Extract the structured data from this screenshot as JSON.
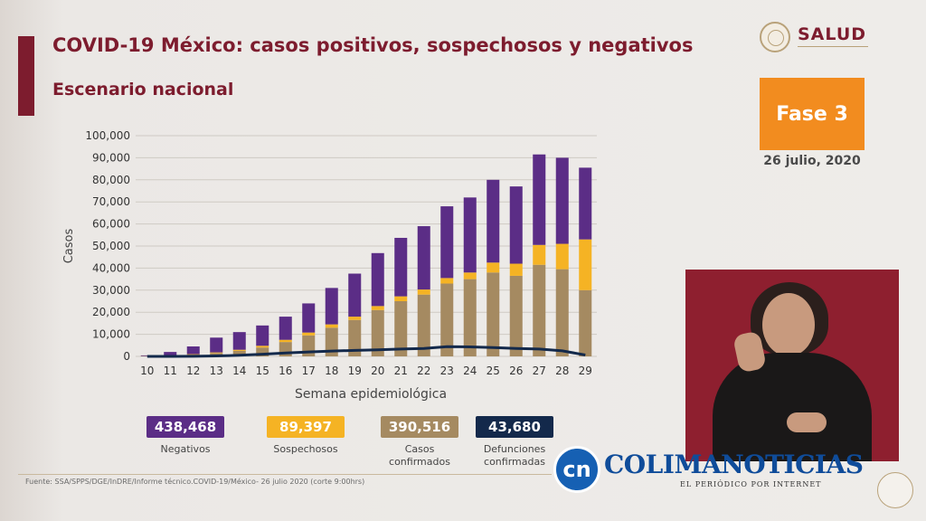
{
  "header": {
    "title": "COVID-19 México: casos positivos, sospechosos y negativos",
    "subtitle": "Escenario nacional",
    "logo_text": "SALUD",
    "phase": "Fase 3",
    "date": "26 julio, 2020"
  },
  "summary": [
    {
      "value": "438,468",
      "label": "Negativos",
      "color": "#5b2d86"
    },
    {
      "value": "89,397",
      "label": "Sospechosos",
      "color": "#f5b324"
    },
    {
      "value": "390,516",
      "label": "Casos confirmados",
      "color": "#a58a61"
    },
    {
      "value": "43,680",
      "label": "Defunciones confirmadas",
      "color": "#13294b"
    }
  ],
  "footer": {
    "source": "Fuente: SSA/SPPS/DGE/InDRE/Informe técnico.COVID-19/México- 26 julio 2020 (corte 9:00hrs)",
    "watermark": "COLIMANOTICIAS",
    "watermark_sub": "EL PERIÓDICO POR INTERNET",
    "watermark_badge": "cn"
  },
  "chart_data": {
    "type": "bar",
    "stacked": true,
    "xlabel": "Semana epidemiológica",
    "ylabel": "Casos",
    "ylim": [
      0,
      100000
    ],
    "yticks": [
      "0",
      "10,000",
      "20,000",
      "30,000",
      "40,000",
      "50,000",
      "60,000",
      "70,000",
      "80,000",
      "90,000",
      "100,000"
    ],
    "categories": [
      "10",
      "11",
      "12",
      "13",
      "14",
      "15",
      "16",
      "17",
      "18",
      "19",
      "20",
      "21",
      "22",
      "23",
      "24",
      "25",
      "26",
      "27",
      "28",
      "29"
    ],
    "series": [
      {
        "name": "Casos confirmados",
        "color": "#a58a61",
        "values": [
          100,
          300,
          800,
          1500,
          2500,
          4000,
          6500,
          9500,
          13000,
          16500,
          21000,
          25000,
          28000,
          33000,
          35000,
          38000,
          36500,
          41500,
          39500,
          30000
        ]
      },
      {
        "name": "Sospechosos",
        "color": "#f5b324",
        "values": [
          50,
          100,
          200,
          300,
          500,
          800,
          1000,
          1300,
          1500,
          1500,
          1800,
          2200,
          2300,
          2500,
          3000,
          4500,
          5500,
          9000,
          11500,
          23000
        ]
      },
      {
        "name": "Negativos",
        "color": "#5b2d86",
        "values": [
          300,
          1600,
          3500,
          6700,
          8000,
          9200,
          10500,
          13200,
          16500,
          19500,
          24000,
          26500,
          28700,
          32500,
          34000,
          37500,
          35000,
          41000,
          39000,
          32500
        ]
      },
      {
        "name": "Defunciones confirmadas",
        "type": "line",
        "color": "#13294b",
        "values": [
          0,
          10,
          50,
          200,
          500,
          1000,
          1500,
          2000,
          2400,
          2700,
          3000,
          3300,
          3600,
          4400,
          4300,
          4000,
          3600,
          3300,
          2500,
          600
        ]
      }
    ],
    "grid": true
  }
}
